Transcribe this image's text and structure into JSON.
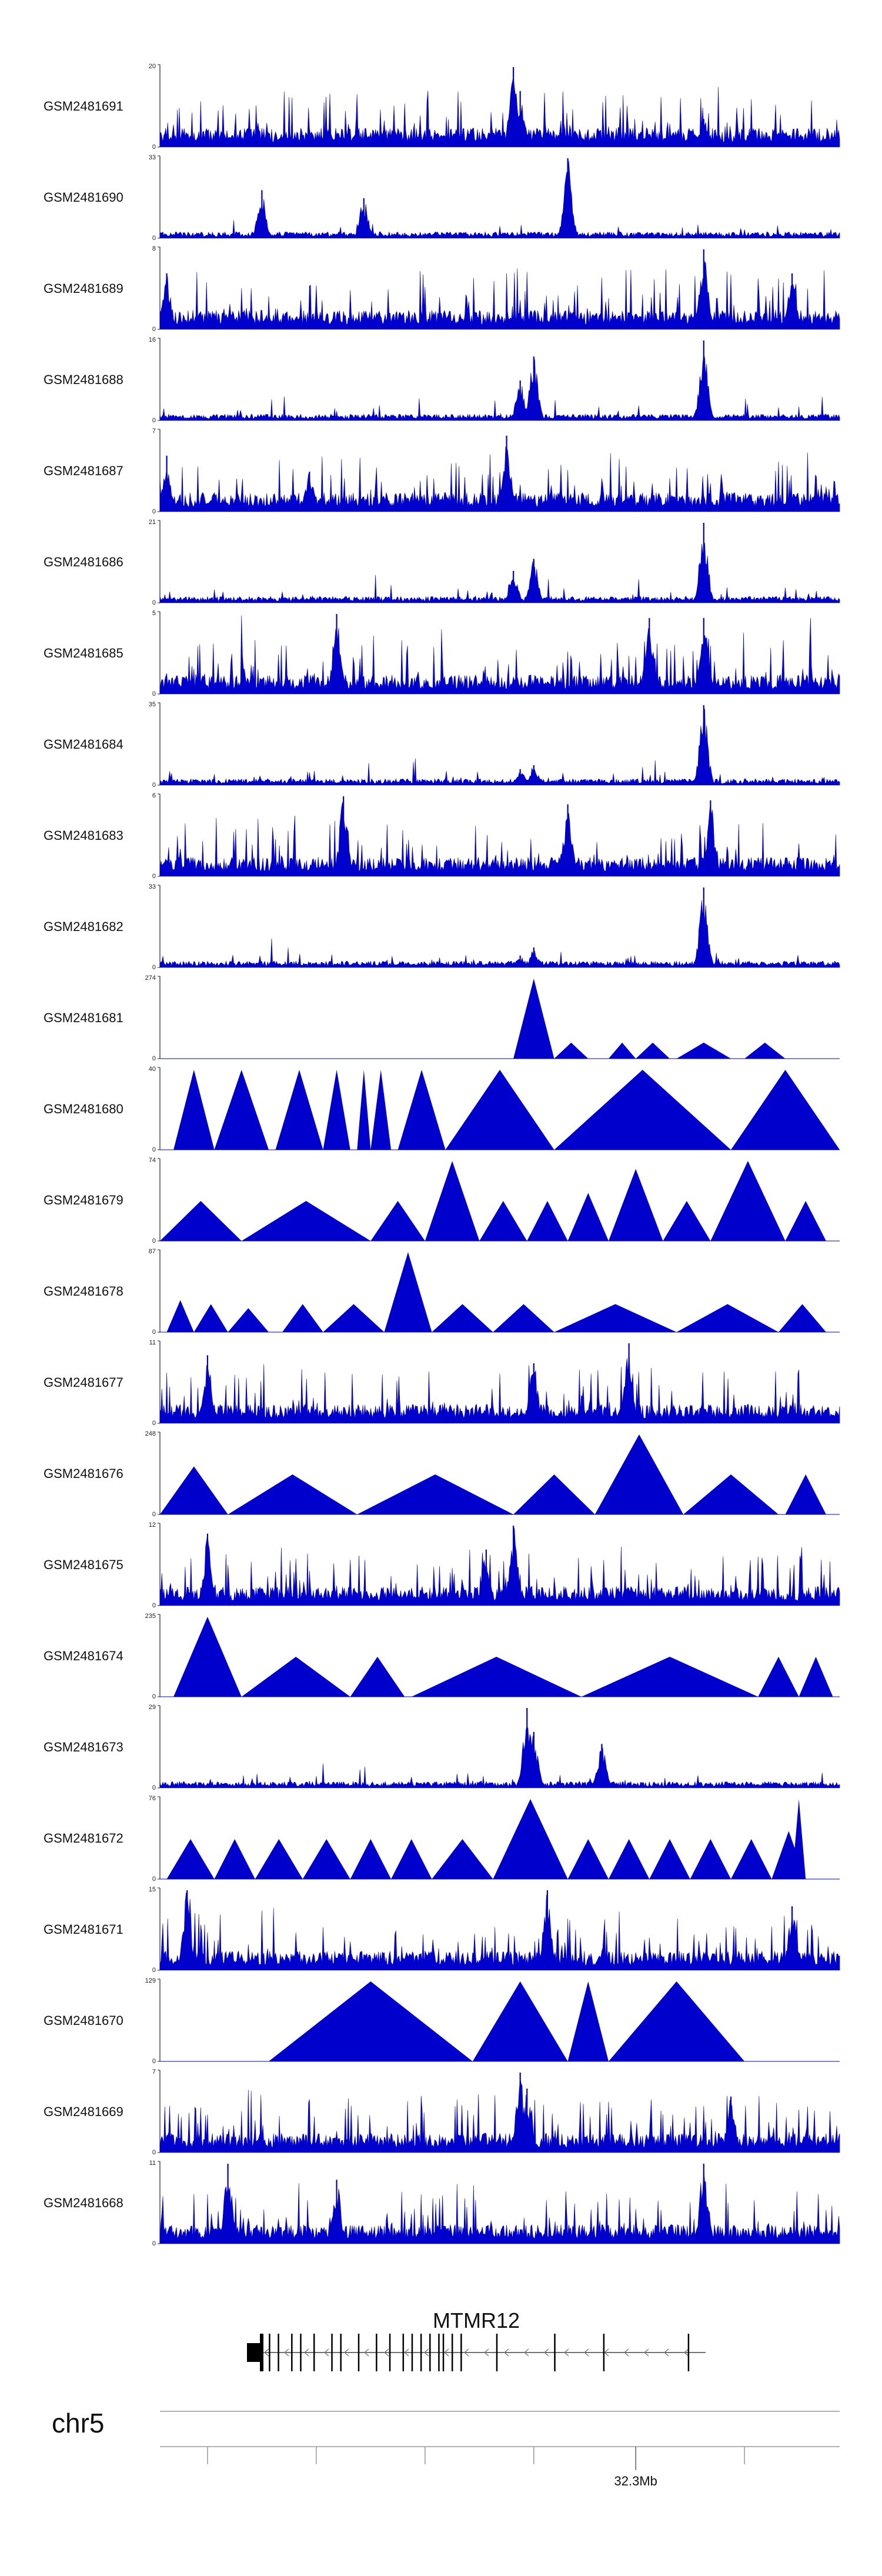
{
  "chart_data": {
    "type": "area",
    "title": "",
    "xlabel": "",
    "ylabel": "",
    "grid": false,
    "series_color": "#0000cd",
    "tracks": [
      {
        "name": "GSM2481691",
        "ymax": "20",
        "ymin": "0",
        "peaks": [
          [
            0.52,
            1.0
          ],
          [
            0.53,
            0.7
          ],
          [
            0.8,
            0.35
          ]
        ],
        "style": "dense"
      },
      {
        "name": "GSM2481690",
        "ymax": "33",
        "ymin": "0",
        "peaks": [
          [
            0.6,
            1.0
          ],
          [
            0.15,
            0.6
          ],
          [
            0.3,
            0.5
          ]
        ],
        "style": "tri"
      },
      {
        "name": "GSM2481689",
        "ymax": "8",
        "ymin": "0",
        "peaks": [
          [
            0.8,
            1.0
          ],
          [
            0.93,
            0.7
          ],
          [
            0.01,
            0.7
          ]
        ],
        "style": "dense"
      },
      {
        "name": "GSM2481688",
        "ymax": "16",
        "ymin": "0",
        "peaks": [
          [
            0.8,
            1.0
          ],
          [
            0.55,
            0.8
          ],
          [
            0.53,
            0.5
          ]
        ],
        "style": "sparse"
      },
      {
        "name": "GSM2481687",
        "ymax": "7",
        "ymin": "0",
        "peaks": [
          [
            0.51,
            0.95
          ],
          [
            0.01,
            0.7
          ],
          [
            0.22,
            0.5
          ]
        ],
        "style": "dense"
      },
      {
        "name": "GSM2481686",
        "ymax": "21",
        "ymin": "0",
        "peaks": [
          [
            0.8,
            1.0
          ],
          [
            0.55,
            0.55
          ],
          [
            0.52,
            0.4
          ]
        ],
        "style": "sparse"
      },
      {
        "name": "GSM2481685",
        "ymax": "5",
        "ymin": "0",
        "peaks": [
          [
            0.26,
            1.0
          ],
          [
            0.72,
            0.95
          ],
          [
            0.8,
            0.95
          ]
        ],
        "style": "dense"
      },
      {
        "name": "GSM2481684",
        "ymax": "35",
        "ymin": "0",
        "peaks": [
          [
            0.8,
            1.0
          ],
          [
            0.55,
            0.25
          ],
          [
            0.53,
            0.2
          ]
        ],
        "style": "sparse"
      },
      {
        "name": "GSM2481683",
        "ymax": "6",
        "ymin": "0",
        "peaks": [
          [
            0.27,
            1.0
          ],
          [
            0.81,
            0.95
          ],
          [
            0.6,
            0.9
          ]
        ],
        "style": "dense"
      },
      {
        "name": "GSM2481682",
        "ymax": "33",
        "ymin": "0",
        "peaks": [
          [
            0.8,
            1.0
          ],
          [
            0.55,
            0.25
          ],
          [
            0.53,
            0.15
          ]
        ],
        "style": "sparse"
      },
      {
        "name": "GSM2481681",
        "ymax": "274",
        "ymin": "0",
        "tris": [
          [
            0.26,
            0.0,
            0.52
          ],
          [
            0.52,
            1.0,
            0.58
          ],
          [
            0.58,
            0.2,
            0.63
          ],
          [
            0.66,
            0.2,
            0.7
          ],
          [
            0.7,
            0.2,
            0.75
          ],
          [
            0.76,
            0.2,
            0.84
          ],
          [
            0.86,
            0.2,
            0.92
          ]
        ],
        "style": "tri"
      },
      {
        "name": "GSM2481680",
        "ymax": "40",
        "ymin": "0",
        "tris": [
          [
            0.02,
            1.0,
            0.08
          ],
          [
            0.08,
            1.0,
            0.16
          ],
          [
            0.17,
            1.0,
            0.24
          ],
          [
            0.24,
            1.0,
            0.28
          ],
          [
            0.29,
            1.0,
            0.31
          ],
          [
            0.31,
            1.0,
            0.34
          ],
          [
            0.35,
            1.0,
            0.42
          ],
          [
            0.42,
            1.0,
            0.58
          ],
          [
            0.58,
            1.0,
            0.84
          ],
          [
            0.84,
            1.0,
            1.0
          ]
        ],
        "style": "tri"
      },
      {
        "name": "GSM2481679",
        "ymax": "74",
        "ymin": "0",
        "tris": [
          [
            0.0,
            0.5,
            0.12
          ],
          [
            0.12,
            0.5,
            0.31
          ],
          [
            0.31,
            0.5,
            0.39
          ],
          [
            0.39,
            1.0,
            0.47
          ],
          [
            0.47,
            0.5,
            0.54
          ],
          [
            0.54,
            0.5,
            0.6
          ],
          [
            0.6,
            0.6,
            0.66
          ],
          [
            0.66,
            0.9,
            0.74
          ],
          [
            0.74,
            0.5,
            0.81
          ],
          [
            0.81,
            1.0,
            0.92
          ],
          [
            0.92,
            0.5,
            0.98
          ]
        ],
        "style": "tri"
      },
      {
        "name": "GSM2481678",
        "ymax": "87",
        "ymin": "0",
        "tris": [
          [
            0.01,
            0.4,
            0.05
          ],
          [
            0.05,
            0.35,
            0.1
          ],
          [
            0.1,
            0.3,
            0.16
          ],
          [
            0.18,
            0.35,
            0.24
          ],
          [
            0.24,
            0.35,
            0.33
          ],
          [
            0.33,
            1.0,
            0.4
          ],
          [
            0.4,
            0.35,
            0.49
          ],
          [
            0.49,
            0.35,
            0.58
          ],
          [
            0.58,
            0.35,
            0.76
          ],
          [
            0.76,
            0.35,
            0.91
          ],
          [
            0.91,
            0.35,
            0.98
          ]
        ],
        "style": "tri"
      },
      {
        "name": "GSM2481677",
        "ymax": "11",
        "ymin": "0",
        "peaks": [
          [
            0.69,
            1.0
          ],
          [
            0.07,
            0.85
          ],
          [
            0.55,
            0.75
          ]
        ],
        "style": "dense"
      },
      {
        "name": "GSM2481676",
        "ymax": "248",
        "ymin": "0",
        "tris": [
          [
            0.0,
            0.6,
            0.1
          ],
          [
            0.1,
            0.5,
            0.29
          ],
          [
            0.29,
            0.5,
            0.52
          ],
          [
            0.52,
            0.5,
            0.64
          ],
          [
            0.64,
            1.0,
            0.77
          ],
          [
            0.77,
            0.5,
            0.91
          ],
          [
            0.92,
            0.5,
            0.98
          ]
        ],
        "style": "tri"
      },
      {
        "name": "GSM2481675",
        "ymax": "12",
        "ymin": "0",
        "peaks": [
          [
            0.52,
            1.0
          ],
          [
            0.07,
            0.9
          ],
          [
            0.48,
            0.7
          ]
        ],
        "style": "dense"
      },
      {
        "name": "GSM2481674",
        "ymax": "235",
        "ymin": "0",
        "tris": [
          [
            0.02,
            1.0,
            0.12
          ],
          [
            0.12,
            0.5,
            0.28
          ],
          [
            0.28,
            0.5,
            0.36
          ],
          [
            0.37,
            0.5,
            0.62
          ],
          [
            0.62,
            0.5,
            0.88
          ],
          [
            0.88,
            0.5,
            0.94
          ],
          [
            0.94,
            0.5,
            0.99
          ]
        ],
        "style": "tri"
      },
      {
        "name": "GSM2481673",
        "ymax": "29",
        "ymin": "0",
        "peaks": [
          [
            0.54,
            1.0
          ],
          [
            0.55,
            0.7
          ],
          [
            0.65,
            0.55
          ]
        ],
        "style": "sparse"
      },
      {
        "name": "GSM2481672",
        "ymax": "76",
        "ymin": "0",
        "tris": [
          [
            0.01,
            0.5,
            0.08
          ],
          [
            0.08,
            0.5,
            0.14
          ],
          [
            0.14,
            0.5,
            0.21
          ],
          [
            0.21,
            0.5,
            0.28
          ],
          [
            0.28,
            0.5,
            0.34
          ],
          [
            0.34,
            0.5,
            0.4
          ],
          [
            0.4,
            0.5,
            0.49
          ],
          [
            0.49,
            1.0,
            0.6
          ],
          [
            0.6,
            0.5,
            0.66
          ],
          [
            0.66,
            0.5,
            0.72
          ],
          [
            0.72,
            0.5,
            0.78
          ],
          [
            0.78,
            0.5,
            0.84
          ],
          [
            0.84,
            0.5,
            0.9
          ],
          [
            0.9,
            0.6,
            0.95
          ],
          [
            0.93,
            1.0,
            0.95
          ]
        ],
        "style": "tri"
      },
      {
        "name": "GSM2481671",
        "ymax": "15",
        "ymin": "0",
        "peaks": [
          [
            0.04,
            1.0
          ],
          [
            0.57,
            1.0
          ],
          [
            0.93,
            0.8
          ]
        ],
        "style": "dense"
      },
      {
        "name": "GSM2481670",
        "ymax": "129",
        "ymin": "0",
        "tris": [
          [
            0.16,
            1.0,
            0.46
          ],
          [
            0.46,
            1.0,
            0.6
          ],
          [
            0.6,
            1.0,
            0.66
          ],
          [
            0.66,
            1.0,
            0.86
          ]
        ],
        "style": "tri"
      },
      {
        "name": "GSM2481669",
        "ymax": "7",
        "ymin": "0",
        "peaks": [
          [
            0.53,
            1.0
          ],
          [
            0.54,
            0.8
          ],
          [
            0.84,
            0.7
          ]
        ],
        "style": "dense"
      },
      {
        "name": "GSM2481668",
        "ymax": "11",
        "ymin": "0",
        "peaks": [
          [
            0.1,
            1.0
          ],
          [
            0.8,
            1.0
          ],
          [
            0.26,
            0.8
          ]
        ],
        "style": "dense"
      }
    ],
    "gene": {
      "name": "MTMR12",
      "strand": "-",
      "exons": [
        0.02,
        0.04,
        0.07,
        0.09,
        0.12,
        0.16,
        0.18,
        0.22,
        0.26,
        0.29,
        0.32,
        0.34,
        0.36,
        0.38,
        0.4,
        0.41,
        0.43,
        0.45,
        0.53,
        0.66,
        0.77,
        0.96
      ]
    },
    "chromosome": {
      "label": "chr5",
      "tick_label": "32.3Mb",
      "labeled_tick": 0.7,
      "minor_ticks": [
        0.07,
        0.23,
        0.39,
        0.55,
        0.86
      ]
    }
  }
}
